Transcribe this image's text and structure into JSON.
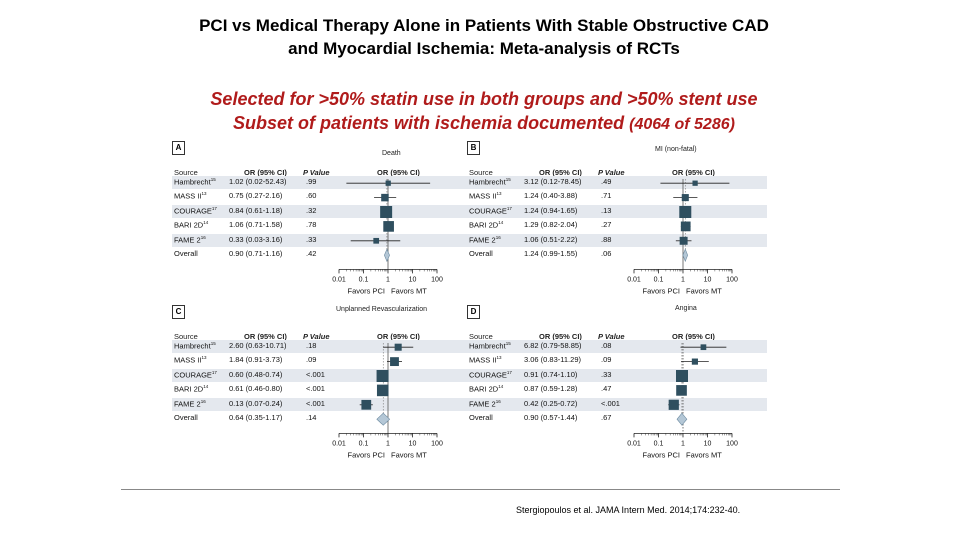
{
  "title_line1": "PCI vs Medical Therapy Alone in Patients With Stable Obstructive CAD",
  "title_line2": "and Myocardial Ischemia: Meta-analysis of RCTs",
  "subtitle1": "Selected for >50% statin use in both groups and >50% stent use",
  "subtitle2_main": "Subset of patients with ischemia documented",
  "subtitle2_frac": "(4064 of 5286)",
  "citation": "Stergiopoulos et al. JAMA Intern Med. 2014;174:232-40.",
  "headers": {
    "source": "Source",
    "or": "OR (95% CI)",
    "p": "P Value",
    "plot": "OR (95% CI)"
  },
  "ticks": [
    "0.01",
    "0.1",
    "1",
    "10",
    "100"
  ],
  "favors_left": "Favors PCI",
  "favors_right": "Favors MT",
  "colors": {
    "marker": "#2f4f5f",
    "diamond": "#b4c7d6",
    "shade": "#e4e8ee"
  },
  "chart_data": [
    {
      "type": "forest",
      "panel": "A",
      "outcome": "Death",
      "xscale": "log",
      "xlim": [
        0.01,
        100
      ],
      "rows": [
        {
          "source": "Hambrecht",
          "ref": "15",
          "or_text": "1.02 (0.02-52.43)",
          "p": ".99",
          "or": 1.02,
          "lo": 0.02,
          "hi": 52.43,
          "w": 0.25
        },
        {
          "source": "MASS II",
          "ref": "13",
          "or_text": "0.75 (0.27-2.16)",
          "p": ".60",
          "or": 0.75,
          "lo": 0.27,
          "hi": 2.16,
          "w": 0.5
        },
        {
          "source": "COURAGE",
          "ref": "17",
          "or_text": "0.84 (0.61-1.18)",
          "p": ".32",
          "or": 0.84,
          "lo": 0.61,
          "hi": 1.18,
          "w": 1.0
        },
        {
          "source": "BARI 2D",
          "ref": "14",
          "or_text": "1.06 (0.71-1.58)",
          "p": ".78",
          "or": 1.06,
          "lo": 0.71,
          "hi": 1.58,
          "w": 0.85
        },
        {
          "source": "FAME 2",
          "ref": "16",
          "or_text": "0.33 (0.03-3.16)",
          "p": ".33",
          "or": 0.33,
          "lo": 0.03,
          "hi": 3.16,
          "w": 0.3
        }
      ],
      "overall": {
        "source": "Overall",
        "or_text": "0.90 (0.71-1.16)",
        "p": ".42",
        "or": 0.9,
        "lo": 0.71,
        "hi": 1.16
      }
    },
    {
      "type": "forest",
      "panel": "B",
      "outcome": "MI (non-fatal)",
      "xscale": "log",
      "xlim": [
        0.01,
        100
      ],
      "rows": [
        {
          "source": "Hambrecht",
          "ref": "15",
          "or_text": "3.12 (0.12-78.45)",
          "p": ".49",
          "or": 3.12,
          "lo": 0.12,
          "hi": 78.45,
          "w": 0.25
        },
        {
          "source": "MASS II",
          "ref": "13",
          "or_text": "1.24 (0.40-3.88)",
          "p": ".71",
          "or": 1.24,
          "lo": 0.4,
          "hi": 3.88,
          "w": 0.45
        },
        {
          "source": "COURAGE",
          "ref": "17",
          "or_text": "1.24 (0.94-1.65)",
          "p": ".13",
          "or": 1.24,
          "lo": 0.94,
          "hi": 1.65,
          "w": 1.0
        },
        {
          "source": "BARI 2D",
          "ref": "14",
          "or_text": "1.29 (0.82-2.04)",
          "p": ".27",
          "or": 1.29,
          "lo": 0.82,
          "hi": 2.04,
          "w": 0.75
        },
        {
          "source": "FAME 2",
          "ref": "16",
          "or_text": "1.06 (0.51-2.22)",
          "p": ".88",
          "or": 1.06,
          "lo": 0.51,
          "hi": 2.22,
          "w": 0.55
        }
      ],
      "overall": {
        "source": "Overall",
        "or_text": "1.24 (0.99-1.55)",
        "p": ".06",
        "or": 1.24,
        "lo": 0.99,
        "hi": 1.55
      }
    },
    {
      "type": "forest",
      "panel": "C",
      "outcome": "Unplanned Revascularization",
      "xscale": "log",
      "xlim": [
        0.01,
        100
      ],
      "rows": [
        {
          "source": "Hambrecht",
          "ref": "15",
          "or_text": "2.60 (0.63-10.71)",
          "p": ".18",
          "or": 2.6,
          "lo": 0.63,
          "hi": 10.71,
          "w": 0.45
        },
        {
          "source": "MASS II",
          "ref": "13",
          "or_text": "1.84 (0.91-3.73)",
          "p": ".09",
          "or": 1.84,
          "lo": 0.91,
          "hi": 3.73,
          "w": 0.65
        },
        {
          "source": "COURAGE",
          "ref": "17",
          "or_text": "0.60 (0.48-0.74)",
          "p": "<.001",
          "or": 0.6,
          "lo": 0.48,
          "hi": 0.74,
          "w": 1.0
        },
        {
          "source": "BARI 2D",
          "ref": "14",
          "or_text": "0.61 (0.46-0.80)",
          "p": "<.001",
          "or": 0.61,
          "lo": 0.46,
          "hi": 0.8,
          "w": 0.95
        },
        {
          "source": "FAME 2",
          "ref": "16",
          "or_text": "0.13 (0.07-0.24)",
          "p": "<.001",
          "or": 0.13,
          "lo": 0.07,
          "hi": 0.24,
          "w": 0.75
        }
      ],
      "overall": {
        "source": "Overall",
        "or_text": "0.64 (0.35-1.17)",
        "p": ".14",
        "or": 0.64,
        "lo": 0.35,
        "hi": 1.17
      }
    },
    {
      "type": "forest",
      "panel": "D",
      "outcome": "Angina",
      "xscale": "log",
      "xlim": [
        0.01,
        100
      ],
      "rows": [
        {
          "source": "Hambrecht",
          "ref": "15",
          "or_text": "6.82 (0.79-58.85)",
          "p": ".08",
          "or": 6.82,
          "lo": 0.79,
          "hi": 58.85,
          "w": 0.3
        },
        {
          "source": "MASS II",
          "ref": "13",
          "or_text": "3.06 (0.83-11.29)",
          "p": ".09",
          "or": 3.06,
          "lo": 0.83,
          "hi": 11.29,
          "w": 0.35
        },
        {
          "source": "COURAGE",
          "ref": "17",
          "or_text": "0.91 (0.74-1.10)",
          "p": ".33",
          "or": 0.91,
          "lo": 0.74,
          "hi": 1.1,
          "w": 1.0
        },
        {
          "source": "BARI 2D",
          "ref": "14",
          "or_text": "0.87 (0.59-1.28)",
          "p": ".47",
          "or": 0.87,
          "lo": 0.59,
          "hi": 1.28,
          "w": 0.85
        },
        {
          "source": "FAME 2",
          "ref": "16",
          "or_text": "0.42 (0.25-0.72)",
          "p": "<.001",
          "or": 0.42,
          "lo": 0.25,
          "hi": 0.72,
          "w": 0.8
        }
      ],
      "overall": {
        "source": "Overall",
        "or_text": "0.90 (0.57-1.44)",
        "p": ".67",
        "or": 0.9,
        "lo": 0.57,
        "hi": 1.44
      }
    }
  ]
}
